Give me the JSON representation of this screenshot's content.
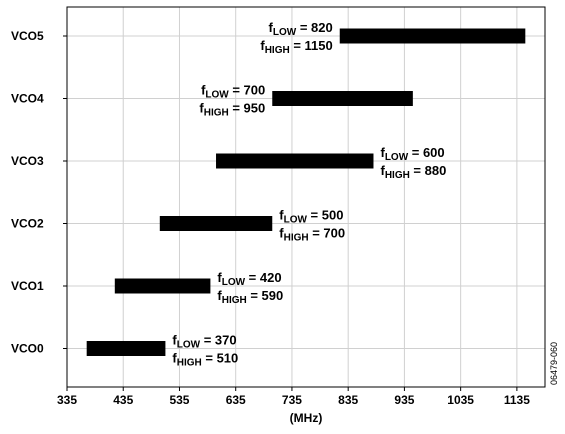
{
  "chart_data": {
    "type": "bar",
    "orientation": "horizontal-range",
    "categories": [
      "VCO0",
      "VCO1",
      "VCO2",
      "VCO3",
      "VCO4",
      "VCO5"
    ],
    "series": [
      {
        "low": 370,
        "high": 510
      },
      {
        "low": 420,
        "high": 590
      },
      {
        "low": 500,
        "high": 700
      },
      {
        "low": 600,
        "high": 880
      },
      {
        "low": 700,
        "high": 950
      },
      {
        "low": 820,
        "high": 1150
      }
    ],
    "annotations": [
      {
        "low_label": "f",
        "low_sub": "LOW",
        "low_text": " = 370",
        "high_label": "f",
        "high_sub": "HIGH",
        "high_text": " = 510"
      },
      {
        "low_label": "f",
        "low_sub": "LOW",
        "low_text": " = 420",
        "high_label": "f",
        "high_sub": "HIGH",
        "high_text": " = 590"
      },
      {
        "low_label": "f",
        "low_sub": "LOW",
        "low_text": " = 500",
        "high_label": "f",
        "high_sub": "HIGH",
        "high_text": " = 700"
      },
      {
        "low_label": "f",
        "low_sub": "LOW",
        "low_text": " = 600",
        "high_label": "f",
        "high_sub": "HIGH",
        "high_text": " = 880"
      },
      {
        "low_label": "f",
        "low_sub": "LOW",
        "low_text": " = 700",
        "high_label": "f",
        "high_sub": "HIGH",
        "high_text": " = 950"
      },
      {
        "low_label": "f",
        "low_sub": "LOW",
        "low_text": " = 820",
        "high_label": "f",
        "high_sub": "HIGH",
        "high_text": " = 1150"
      }
    ],
    "xticks": [
      "335",
      "435",
      "535",
      "635",
      "735",
      "835",
      "935",
      "1035",
      "1135"
    ],
    "xlim": [
      335,
      1185
    ],
    "xlabel": "(MHz)",
    "grid": true,
    "bar_color": "#000000",
    "grid_color": "#d0d0d0"
  },
  "figure_id": "06479-060"
}
